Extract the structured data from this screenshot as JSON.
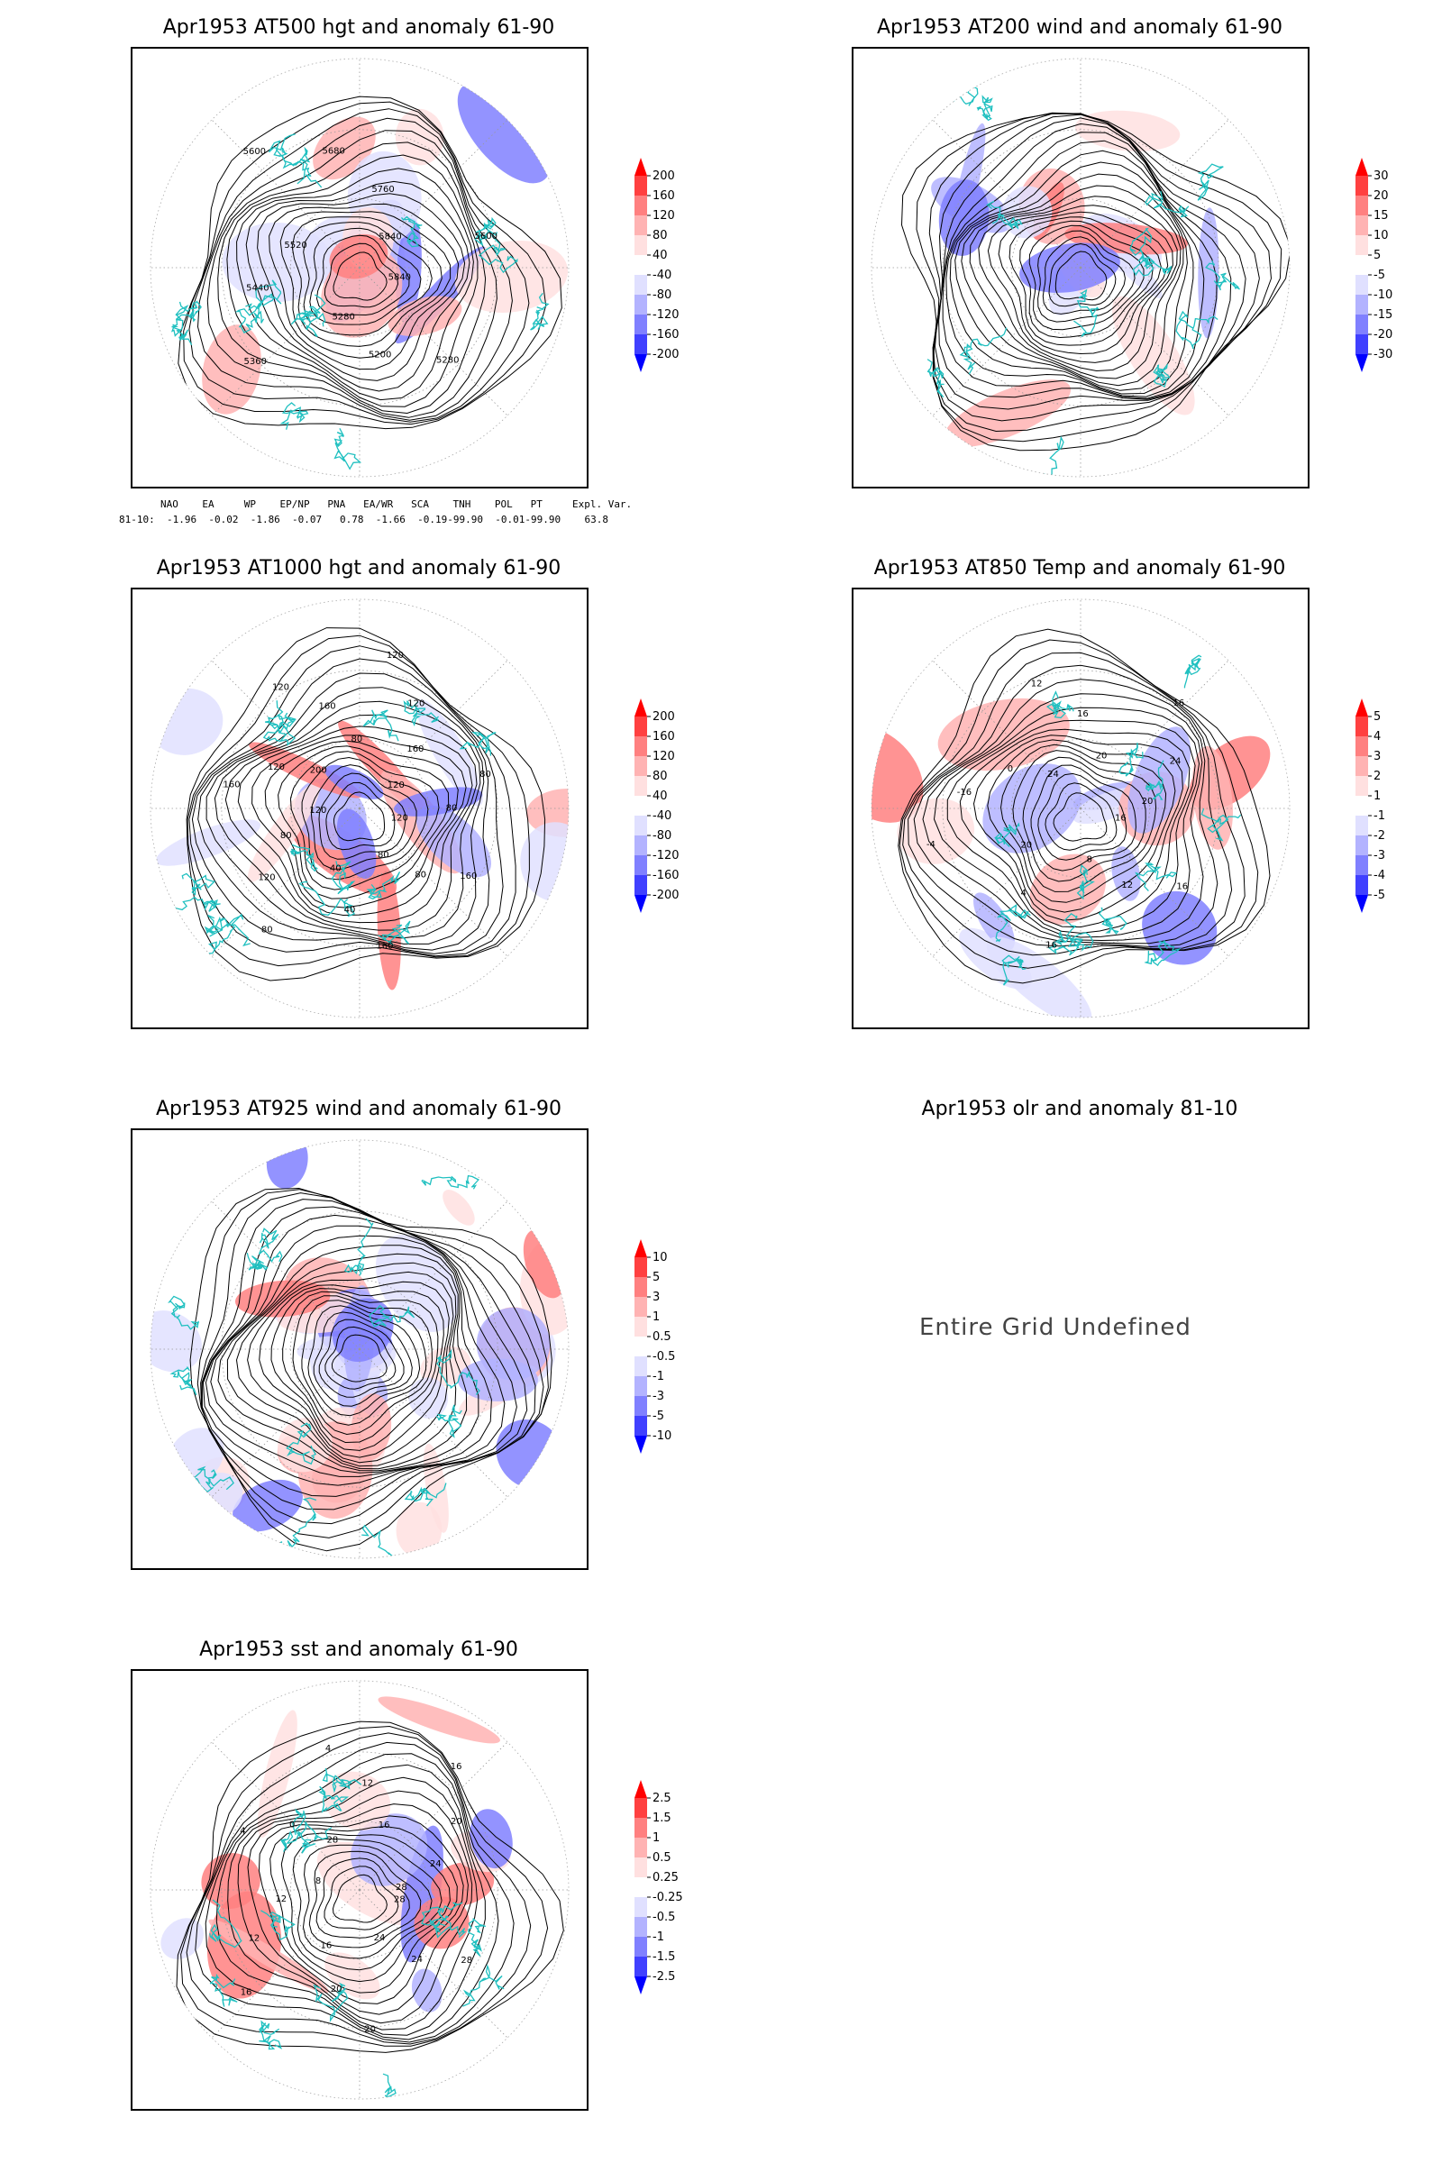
{
  "panels": [
    {
      "id": "p1",
      "title": "Apr1953 AT500 hgt and anomaly 61-90",
      "cbar_labels": [
        "200",
        "160",
        "120",
        "80",
        "40",
        "-40",
        "-80",
        "-120",
        "-160",
        "-200"
      ],
      "contour_labels": [
        "5840",
        "5280",
        "5200",
        "5280",
        "5360",
        "5440",
        "5520",
        "5600",
        "5680",
        "5760",
        "5840",
        "5600"
      ]
    },
    {
      "id": "p2",
      "title": "Apr1953 AT200 wind and anomaly 61-90",
      "cbar_labels": [
        "30",
        "20",
        "15",
        "10",
        "5",
        "-5",
        "-10",
        "-15",
        "-20",
        "-30"
      ],
      "contour_labels": []
    },
    {
      "id": "p3",
      "title": "Apr1953 AT1000 hgt and anomaly 61-90",
      "cbar_labels": [
        "200",
        "160",
        "120",
        "80",
        "40",
        "-40",
        "-80",
        "-120",
        "-160",
        "-200"
      ],
      "contour_labels": [
        "120",
        "160",
        "80",
        "80",
        "160",
        "40",
        "40",
        "80",
        "120",
        "80",
        "120",
        "160",
        "120",
        "200",
        "120",
        "160",
        "80",
        "120",
        "120",
        "160",
        "120",
        "80",
        "80"
      ]
    },
    {
      "id": "p4",
      "title": "Apr1953 AT850 Temp and anomaly 61-90",
      "cbar_labels": [
        "5",
        "4",
        "3",
        "2",
        "1",
        "-1",
        "-2",
        "-3",
        "-4",
        "-5"
      ],
      "contour_labels": [
        "16",
        "16",
        "12",
        "8",
        "16",
        "4",
        "20",
        "-4",
        "-16",
        "0",
        "24",
        "12",
        "16",
        "20",
        "16",
        "24",
        "20"
      ]
    },
    {
      "id": "p5",
      "title": "Apr1953 AT925 wind and anomaly 61-90",
      "cbar_labels": [
        "10",
        "5",
        "3",
        "1",
        "0.5",
        "-0.5",
        "-1",
        "-3",
        "-5",
        "-10"
      ],
      "contour_labels": []
    },
    {
      "id": "p6",
      "title": "Apr1953 olr and anomaly 81-10",
      "undefined_text": "Entire Grid Undefined"
    },
    {
      "id": "p7",
      "title": "Apr1953 sst and anomaly 61-90",
      "cbar_labels": [
        "2.5",
        "1.5",
        "1",
        "0.5",
        "0.25",
        "-0.25",
        "-0.5",
        "-1",
        "-1.5",
        "-2.5"
      ],
      "contour_labels": [
        "28",
        "28",
        "24",
        "24",
        "20",
        "20",
        "16",
        "16",
        "12",
        "12",
        "8",
        "4",
        "0",
        "28",
        "4",
        "12",
        "16",
        "16",
        "20",
        "24",
        "28"
      ]
    }
  ],
  "indices": {
    "header": "NAO    EA     WP    EP/NP   PNA   EA/WR   SCA    TNH    POL   PT     Expl. Var.",
    "row": "81-10:  -1.96  -0.02  -1.86  -0.07   0.78  -1.66  -0.19-99.90  -0.01-99.90    63.8"
  },
  "colors": {
    "red_ramp": [
      "#ff0000",
      "#ff4040",
      "#ff8080",
      "#ffb3b3",
      "#ffe0e0"
    ],
    "blue_ramp": [
      "#e0e0ff",
      "#b3b3ff",
      "#8080ff",
      "#4040ff",
      "#0000ff"
    ],
    "coast": "#20c0c0"
  }
}
